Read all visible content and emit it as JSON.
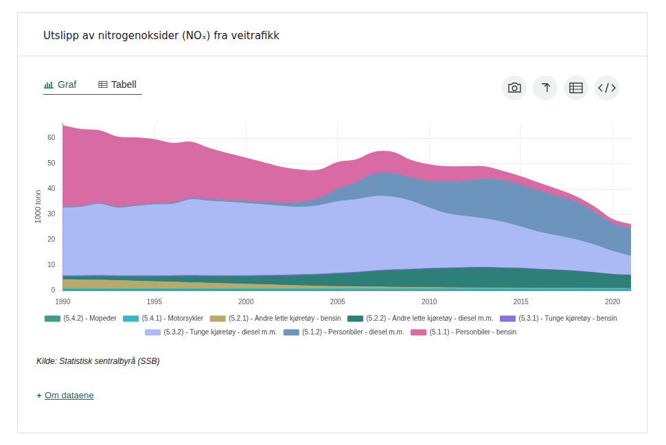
{
  "chart_data": {
    "type": "area",
    "title": "Utslipp av nitrogenoksider (NOₓ) fra veitrafikk",
    "y_label": "1000 tonn",
    "x": [
      1990,
      1991,
      1992,
      1993,
      1994,
      1995,
      1996,
      1997,
      1998,
      1999,
      2000,
      2001,
      2002,
      2003,
      2004,
      2005,
      2006,
      2007,
      2008,
      2009,
      2010,
      2011,
      2012,
      2013,
      2014,
      2015,
      2016,
      2017,
      2018,
      2019,
      2020,
      2021
    ],
    "series": [
      {
        "name": "(5.4.2) - Mopeder",
        "color": "#3f9c86",
        "values": [
          0.3,
          0.3,
          0.3,
          0.3,
          0.3,
          0.3,
          0.3,
          0.3,
          0.3,
          0.3,
          0.3,
          0.3,
          0.3,
          0.3,
          0.3,
          0.3,
          0.2,
          0.2,
          0.2,
          0.2,
          0.2,
          0.2,
          0.2,
          0.2,
          0.2,
          0.2,
          0.2,
          0.2,
          0.2,
          0.2,
          0.2,
          0.2
        ]
      },
      {
        "name": "(5.4.1) - Motorsykler",
        "color": "#35b7c6",
        "values": [
          0.4,
          0.4,
          0.4,
          0.4,
          0.4,
          0.4,
          0.4,
          0.4,
          0.4,
          0.4,
          0.4,
          0.4,
          0.4,
          0.4,
          0.4,
          0.4,
          0.5,
          0.5,
          0.5,
          0.5,
          0.5,
          0.5,
          0.5,
          0.5,
          0.5,
          0.5,
          0.5,
          0.5,
          0.5,
          0.5,
          0.5,
          0.5
        ]
      },
      {
        "name": "(5.2.1) - Andre lette kjøretøy - bensin",
        "color": "#b9a96b",
        "values": [
          3.6,
          3.5,
          3.4,
          3.2,
          3.0,
          2.8,
          2.6,
          2.4,
          2.2,
          2.0,
          1.8,
          1.6,
          1.4,
          1.2,
          1.0,
          0.9,
          0.8,
          0.7,
          0.6,
          0.5,
          0.45,
          0.4,
          0.35,
          0.3,
          0.3,
          0.25,
          0.2,
          0.2,
          0.2,
          0.15,
          0.15,
          0.1
        ]
      },
      {
        "name": "(5.2.2) - Andre lette kjøretøy - diesel m.m.",
        "color": "#2e7f78",
        "values": [
          1.2,
          1.3,
          1.5,
          1.6,
          1.8,
          2.0,
          2.3,
          2.6,
          2.7,
          2.9,
          3.1,
          3.4,
          3.7,
          4.1,
          4.5,
          5.0,
          5.5,
          6.2,
          6.7,
          7.0,
          7.4,
          7.6,
          7.85,
          8.0,
          7.8,
          7.7,
          7.4,
          7.1,
          6.7,
          6.15,
          5.45,
          5.2
        ]
      },
      {
        "name": "(5.3.1) - Tunge kjøretøy - bensin",
        "color": "#8a70e0",
        "values": [
          0.4,
          0.4,
          0.4,
          0.4,
          0.4,
          0.4,
          0.3,
          0.3,
          0.3,
          0.3,
          0.3,
          0.3,
          0.3,
          0.3,
          0.3,
          0.3,
          0.2,
          0.2,
          0.2,
          0.2,
          0.2,
          0.2,
          0.2,
          0.2,
          0.2,
          0.2,
          0.1,
          0.1,
          0.1,
          0.1,
          0.1,
          0.1
        ]
      },
      {
        "name": "(5.3.2) - Tunge kjøretøy - diesel m.m.",
        "color": "#abbaf4",
        "values": [
          26.6,
          26.9,
          28.0,
          26.6,
          27.3,
          27.9,
          28.1,
          29.8,
          29.3,
          28.9,
          28.4,
          27.8,
          27.1,
          26.5,
          27.0,
          28.1,
          28.6,
          29.2,
          28.6,
          26.8,
          23.8,
          21.3,
          20.1,
          19.1,
          18.0,
          16.2,
          14.6,
          13.4,
          12.3,
          10.9,
          9.1,
          7.4
        ]
      },
      {
        "name": "(5.1.2) - Personbiler - diesel m.m.",
        "color": "#6d94bd",
        "values": [
          0.5,
          0.5,
          0.5,
          0.5,
          0.5,
          0.5,
          0.6,
          0.6,
          0.7,
          0.8,
          0.9,
          1.1,
          1.3,
          2.0,
          2.8,
          5.0,
          6.7,
          9.0,
          9.4,
          9.3,
          10.5,
          12.6,
          14.0,
          15.7,
          16.5,
          16.5,
          16.3,
          15.7,
          15.0,
          13.0,
          11.0,
          11.0
        ]
      },
      {
        "name": "(5.1.1) - Personbiler - bensin",
        "color": "#d96ba4",
        "values": [
          32.0,
          30.2,
          28.5,
          27.5,
          26.5,
          25.2,
          23.4,
          22.1,
          20.1,
          18.4,
          17.0,
          15.4,
          14.0,
          12.7,
          11.2,
          10.5,
          9.0,
          8.5,
          8.3,
          6.8,
          6.5,
          6.0,
          5.6,
          4.8,
          3.5,
          3.3,
          3.0,
          2.6,
          2.0,
          2.0,
          1.5,
          1.5
        ]
      }
    ],
    "xlim": [
      1990,
      2021
    ],
    "xticks": [
      1990,
      1995,
      2000,
      2005,
      2010,
      2015,
      2020
    ],
    "ylim": [
      0,
      66
    ],
    "yticks": [
      0,
      10,
      20,
      30,
      40,
      50,
      60
    ],
    "grid": true,
    "stacked": true,
    "legend": "bottom"
  },
  "tabs": [
    "Graf",
    "Tabell"
  ],
  "source": "Kilde: Statistisk sentralbyrå (SSB)",
  "link": "Om dataene"
}
